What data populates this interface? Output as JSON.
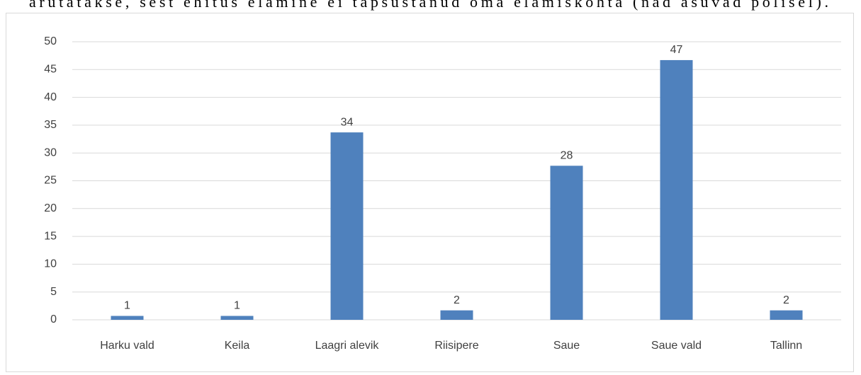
{
  "caption": "arutatakse, sest ehitus elamine ei täpsustanud oma elamiskohta (nad asuvad polisel).",
  "chart_data": {
    "type": "bar",
    "categories": [
      "Harku vald",
      "Keila",
      "Laagri alevik",
      "Riisipere",
      "Saue",
      "Saue vald",
      "Tallinn"
    ],
    "values": [
      0.7,
      0.7,
      33.7,
      1.7,
      27.7,
      46.7,
      1.7
    ],
    "value_labels": [
      "1",
      "1",
      "34",
      "2",
      "28",
      "47",
      "2"
    ],
    "color": "#4f81bd",
    "ylim": [
      0,
      50
    ],
    "yticks": [
      0,
      5,
      10,
      15,
      20,
      25,
      30,
      35,
      40,
      45,
      50
    ],
    "grid": true
  }
}
